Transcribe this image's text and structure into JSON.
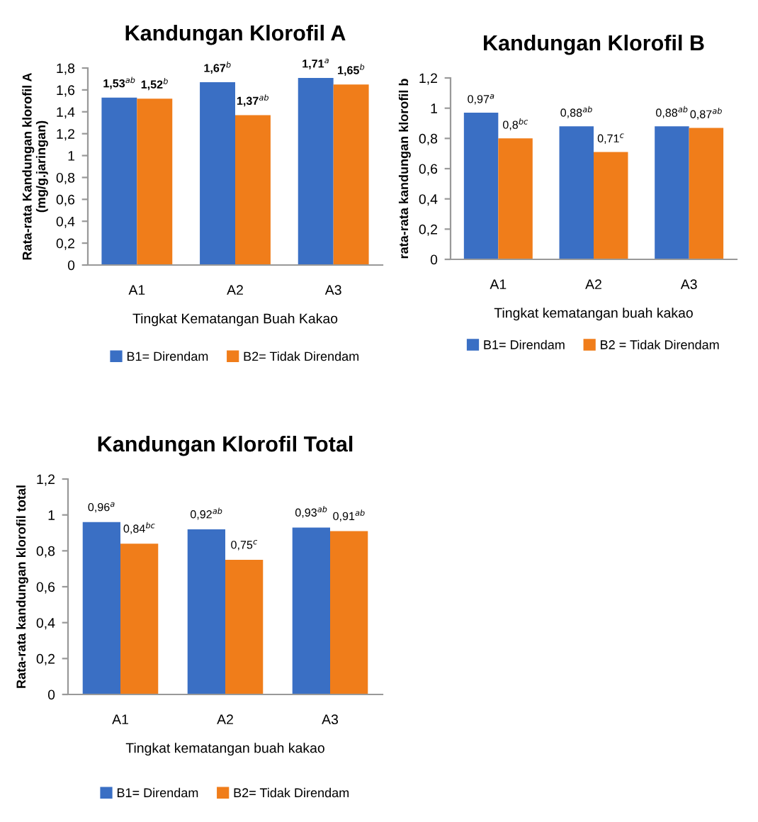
{
  "chart_data": [
    {
      "type": "bar",
      "title": "Kandungan Klorofil A",
      "xlabel": "Tingkat Kematangan Buah Kakao",
      "ylabel": "Rata-rata Kandungan klorofil A\n(mg/g.jaringan)",
      "categories": [
        "A1",
        "A2",
        "A3"
      ],
      "series": [
        {
          "name": "B1= Direndam",
          "color": "#3a6fc4",
          "values": [
            1.53,
            1.67,
            1.71
          ],
          "value_labels": [
            "1,53$^{ab}$",
            "1,67$^{b}$",
            "1,71$^{a}$"
          ]
        },
        {
          "name": "B2= Tidak Direndam",
          "color": "#f07d1a",
          "values": [
            1.52,
            1.37,
            1.65
          ],
          "value_labels": [
            "1,52$^{b}$",
            "1,37$^{ab}$",
            "1,65$^{b}$"
          ]
        }
      ],
      "ylim": [
        0,
        1.8
      ],
      "yticks": [
        0,
        {
          "value": 0.2,
          "label": "0,2"
        },
        {
          "value": 0.4,
          "label": "0,4"
        },
        {
          "value": 0.6,
          "label": "0,6"
        },
        {
          "value": 0.8,
          "label": "0,8"
        },
        1,
        {
          "value": 1.2,
          "label": "1,2"
        },
        {
          "value": 1.4,
          "label": "1,4"
        },
        {
          "value": 1.6,
          "label": "1,6"
        },
        {
          "value": 1.8,
          "label": "1,8"
        }
      ],
      "grid": false,
      "legend": "bottom"
    },
    {
      "type": "bar",
      "title": "Kandungan Klorofil B",
      "xlabel": "Tingkat kematangan buah kakao",
      "ylabel": "rata-rata kandungan klorofil b",
      "categories": [
        "A1",
        "A2",
        "A3"
      ],
      "series": [
        {
          "name": "B1= Direndam",
          "color": "#3a6fc4",
          "values": [
            0.97,
            0.88,
            0.88
          ],
          "value_labels": [
            "0,97$^{a}$",
            "0,88$^{ab}$",
            "0,88$^{ab}$"
          ]
        },
        {
          "name": "B2 = Tidak Direndam",
          "color": "#f07d1a",
          "values": [
            0.8,
            0.71,
            0.87
          ],
          "value_labels": [
            "0,8$^{bc}$",
            "0,71$^{c}$",
            "0,87$^{ab}$"
          ]
        }
      ],
      "ylim": [
        0,
        1.2
      ],
      "yticks": [
        0,
        {
          "value": 0.2,
          "label": "0,2"
        },
        {
          "value": 0.4,
          "label": "0,4"
        },
        {
          "value": 0.6,
          "label": "0,6"
        },
        {
          "value": 0.8,
          "label": "0,8"
        },
        1,
        {
          "value": 1.2,
          "label": "1,2"
        }
      ],
      "grid": false,
      "legend": "bottom"
    },
    {
      "type": "bar",
      "title": "Kandungan Klorofil Total",
      "xlabel": "Tingkat kematangan buah kakao",
      "ylabel": "Rata-rata kandungan klorofil total",
      "categories": [
        "A1",
        "A2",
        "A3"
      ],
      "series": [
        {
          "name": "B1= Direndam",
          "color": "#3a6fc4",
          "values": [
            0.96,
            0.92,
            0.93
          ],
          "value_labels": [
            "0,96$^{a}$",
            "0,92$^{ab}$",
            "0,93$^{ab}$"
          ]
        },
        {
          "name": "B2= Tidak Direndam",
          "color": "#f07d1a",
          "values": [
            0.84,
            0.75,
            0.91
          ],
          "value_labels": [
            "0,84$^{bc}$",
            "0,75$^{c}$",
            "0,91$^{ab}$"
          ]
        }
      ],
      "ylim": [
        0,
        1.2
      ],
      "yticks": [
        0,
        {
          "value": 0.2,
          "label": "0,2"
        },
        {
          "value": 0.4,
          "label": "0,4"
        },
        {
          "value": 0.6,
          "label": "0,6"
        },
        {
          "value": 0.8,
          "label": "0,8"
        },
        1,
        {
          "value": 1.2,
          "label": "1,2"
        }
      ],
      "grid": false,
      "legend": "bottom"
    }
  ]
}
